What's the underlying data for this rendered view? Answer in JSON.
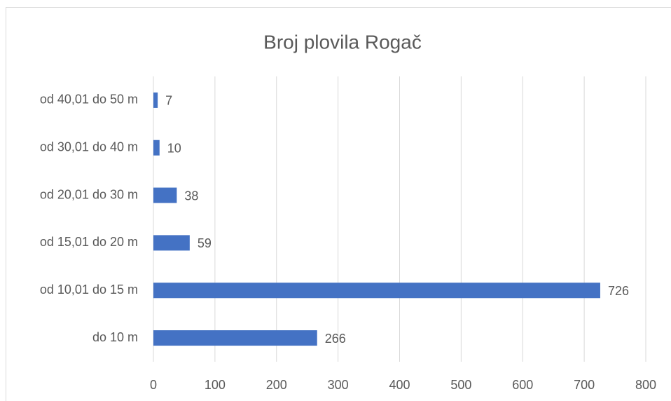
{
  "chart_data": {
    "type": "bar",
    "orientation": "horizontal",
    "title": "Broj plovila Rogač",
    "categories": [
      "od 40,01 do 50 m",
      "od 30,01 do 40 m",
      "od 20,01 do 30 m",
      "od 15,01 do 20 m",
      "od 10,01 do 15 m",
      "do 10 m"
    ],
    "values": [
      7,
      10,
      38,
      59,
      726,
      266
    ],
    "color": "#4472c4",
    "xlim": [
      0,
      800
    ],
    "xticks": [
      0,
      100,
      200,
      300,
      400,
      500,
      600,
      700,
      800
    ],
    "grid": true
  }
}
